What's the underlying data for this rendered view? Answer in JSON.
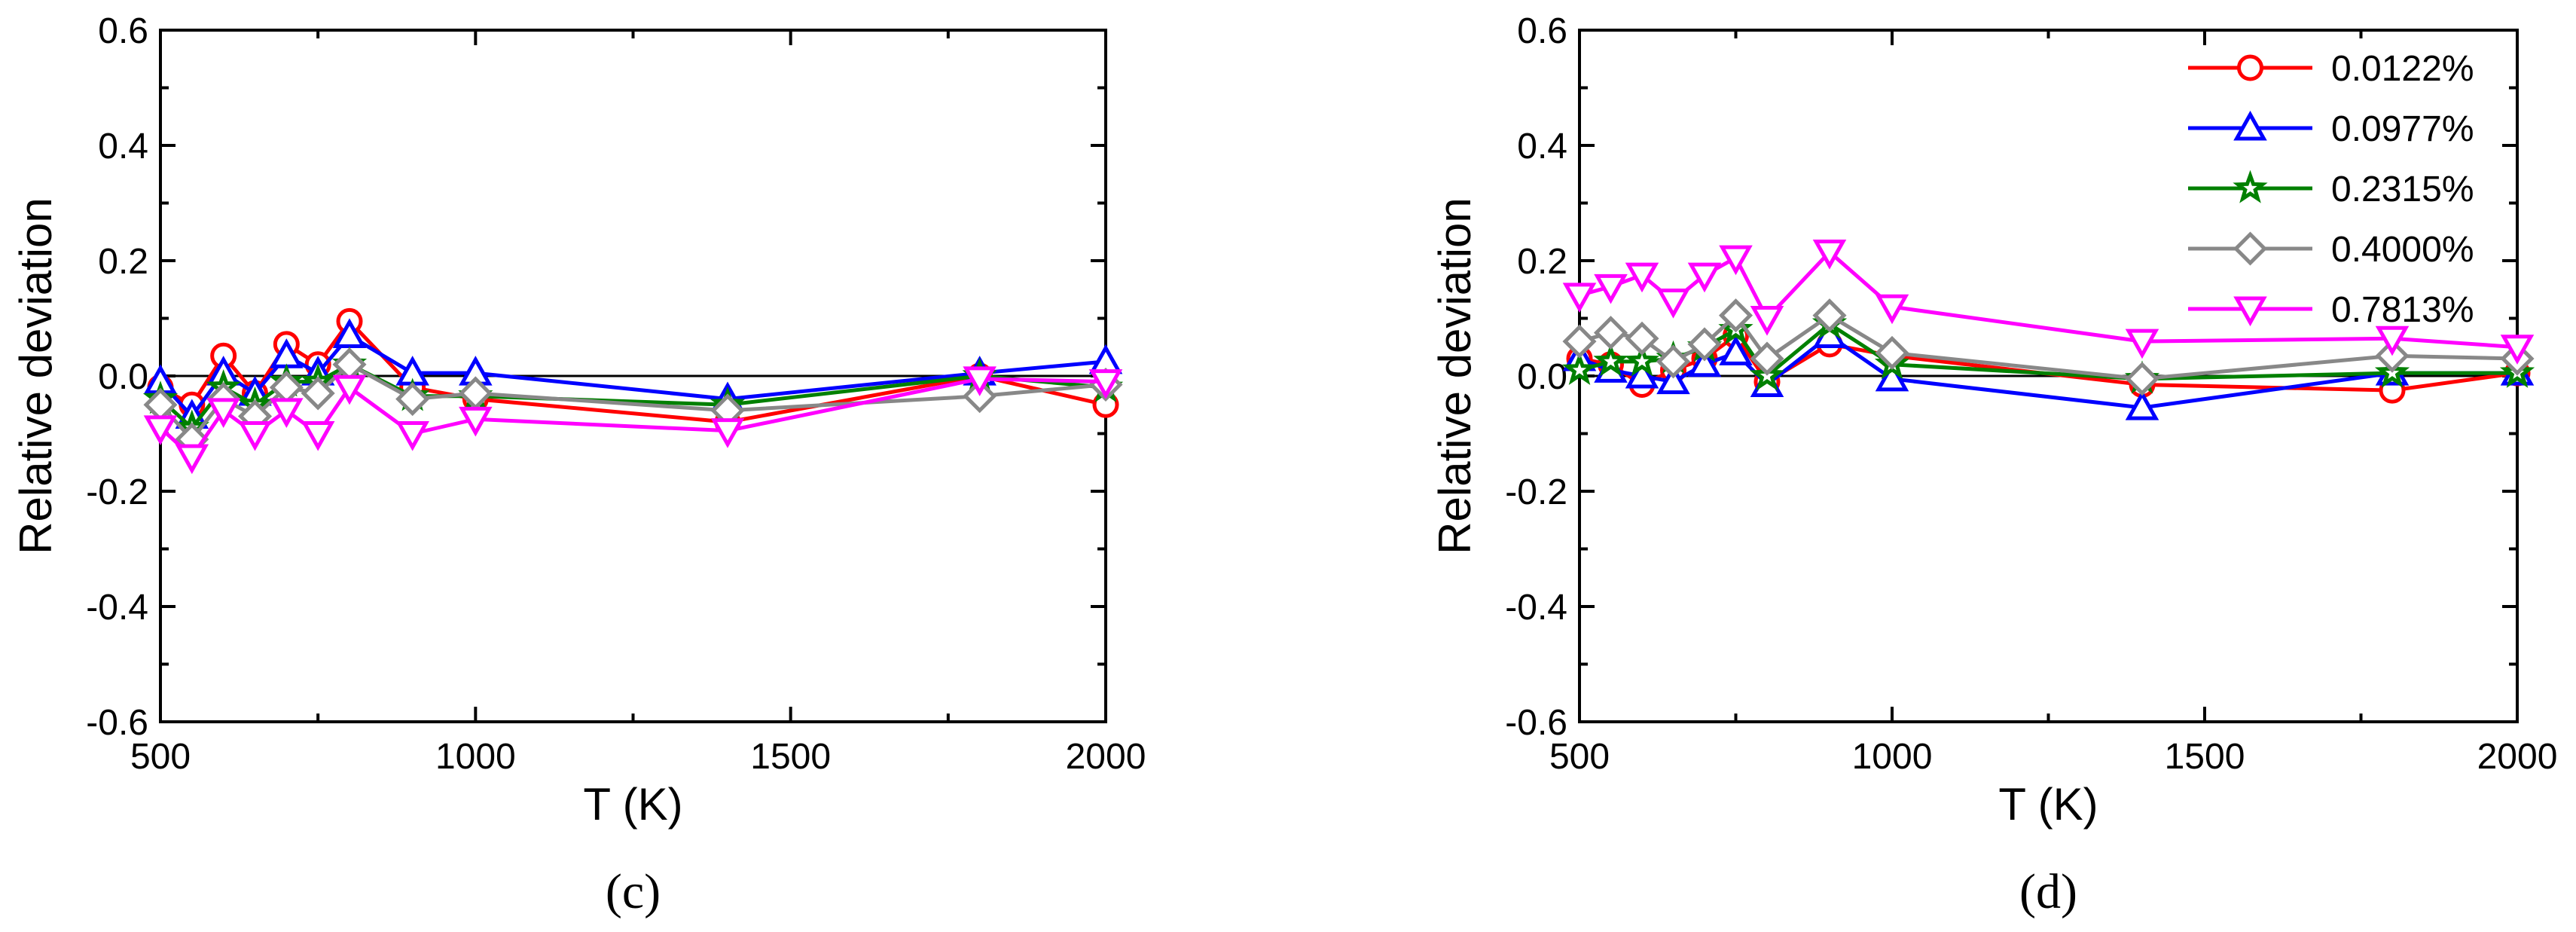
{
  "chart_data": [
    {
      "type": "line",
      "panel_label": "(c)",
      "xlabel": "T (K)",
      "ylabel": "Relative deviation",
      "xlim": [
        500,
        2000
      ],
      "ylim": [
        -0.6,
        0.6
      ],
      "x_ticks": [
        500,
        1000,
        1500,
        2000
      ],
      "y_ticks": [
        -0.6,
        -0.4,
        -0.2,
        0.0,
        0.2,
        0.4,
        0.6
      ],
      "y_tick_labels": [
        "-0.6",
        "-0.4",
        "-0.2",
        "0.0",
        "0.2",
        "0.4",
        "0.6"
      ],
      "reference_line": 0,
      "grid": false,
      "legend": false,
      "series": [
        {
          "name": "0.0122%",
          "color": "#ff0000",
          "marker": "circle",
          "x": [
            500,
            550,
            600,
            650,
            700,
            750,
            800,
            900,
            1000,
            1400,
            1800,
            2000
          ],
          "y": [
            -0.02,
            -0.05,
            0.035,
            -0.03,
            0.055,
            0.02,
            0.095,
            -0.02,
            -0.04,
            -0.08,
            0.0,
            -0.05
          ]
        },
        {
          "name": "0.0977%",
          "color": "#0000ff",
          "marker": "triangle-up",
          "x": [
            500,
            550,
            600,
            650,
            700,
            750,
            800,
            900,
            1000,
            1400,
            1800,
            2000
          ],
          "y": [
            -0.01,
            -0.07,
            0.005,
            -0.03,
            0.035,
            0.005,
            0.07,
            0.005,
            0.005,
            -0.04,
            0.005,
            0.025
          ]
        },
        {
          "name": "0.2315%",
          "color": "#008000",
          "marker": "star",
          "x": [
            500,
            550,
            600,
            650,
            700,
            750,
            800,
            900,
            1000,
            1400,
            1800,
            2000
          ],
          "y": [
            -0.04,
            -0.09,
            -0.02,
            -0.05,
            -0.01,
            -0.01,
            0.02,
            -0.035,
            -0.035,
            -0.05,
            0.0,
            -0.02
          ]
        },
        {
          "name": "0.4000%",
          "color": "#888888",
          "marker": "diamond",
          "x": [
            500,
            550,
            600,
            650,
            700,
            750,
            800,
            900,
            1000,
            1400,
            1800,
            2000
          ],
          "y": [
            -0.05,
            -0.11,
            -0.04,
            -0.07,
            -0.02,
            -0.03,
            0.02,
            -0.04,
            -0.03,
            -0.06,
            -0.035,
            -0.015
          ]
        },
        {
          "name": "0.7813%",
          "color": "#ff00ff",
          "marker": "triangle-down",
          "x": [
            500,
            550,
            600,
            650,
            700,
            750,
            800,
            900,
            1000,
            1400,
            1800,
            2000
          ],
          "y": [
            -0.09,
            -0.14,
            -0.06,
            -0.1,
            -0.06,
            -0.1,
            -0.02,
            -0.1,
            -0.075,
            -0.095,
            -0.005,
            -0.01
          ]
        }
      ]
    },
    {
      "type": "line",
      "panel_label": "(d)",
      "xlabel": "T (K)",
      "ylabel": "Relative deviation",
      "xlim": [
        500,
        2000
      ],
      "ylim": [
        -0.6,
        0.6
      ],
      "x_ticks": [
        500,
        1000,
        1500,
        2000
      ],
      "y_ticks": [
        -0.6,
        -0.4,
        -0.2,
        0.0,
        0.2,
        0.4,
        0.6
      ],
      "y_tick_labels": [
        "-0.6",
        "-0.4",
        "-0.2",
        "0.0",
        "0.2",
        "0.4",
        "0.6"
      ],
      "reference_line": 0,
      "grid": false,
      "legend": "top-right",
      "series": [
        {
          "name": "0.0122%",
          "color": "#ff0000",
          "marker": "circle",
          "x": [
            500,
            550,
            600,
            650,
            700,
            750,
            800,
            900,
            1000,
            1400,
            1800,
            2000
          ],
          "y": [
            0.03,
            0.02,
            -0.015,
            0.01,
            0.03,
            0.07,
            -0.01,
            0.055,
            0.035,
            -0.015,
            -0.025,
            0.005
          ]
        },
        {
          "name": "0.0977%",
          "color": "#0000ff",
          "marker": "triangle-up",
          "x": [
            500,
            550,
            600,
            650,
            700,
            750,
            800,
            900,
            1000,
            1400,
            1800,
            2000
          ],
          "y": [
            0.03,
            0.01,
            0.0,
            -0.01,
            0.02,
            0.04,
            -0.015,
            0.07,
            -0.005,
            -0.055,
            0.005,
            0.005
          ]
        },
        {
          "name": "0.2315%",
          "color": "#008000",
          "marker": "star",
          "x": [
            500,
            550,
            600,
            650,
            700,
            750,
            800,
            900,
            1000,
            1400,
            1800,
            2000
          ],
          "y": [
            0.01,
            0.025,
            0.025,
            0.03,
            0.05,
            0.08,
            0.0,
            0.09,
            0.02,
            -0.005,
            0.005,
            0.005
          ]
        },
        {
          "name": "0.4000%",
          "color": "#888888",
          "marker": "diamond",
          "x": [
            500,
            550,
            600,
            650,
            700,
            750,
            800,
            900,
            1000,
            1400,
            1800,
            2000
          ],
          "y": [
            0.06,
            0.075,
            0.065,
            0.025,
            0.055,
            0.105,
            0.03,
            0.105,
            0.04,
            -0.005,
            0.035,
            0.03
          ]
        },
        {
          "name": "0.7813%",
          "color": "#ff00ff",
          "marker": "triangle-down",
          "x": [
            500,
            550,
            600,
            650,
            700,
            750,
            800,
            900,
            1000,
            1400,
            1800,
            2000
          ],
          "y": [
            0.14,
            0.155,
            0.175,
            0.13,
            0.175,
            0.205,
            0.1,
            0.215,
            0.12,
            0.06,
            0.065,
            0.05
          ]
        }
      ]
    }
  ]
}
